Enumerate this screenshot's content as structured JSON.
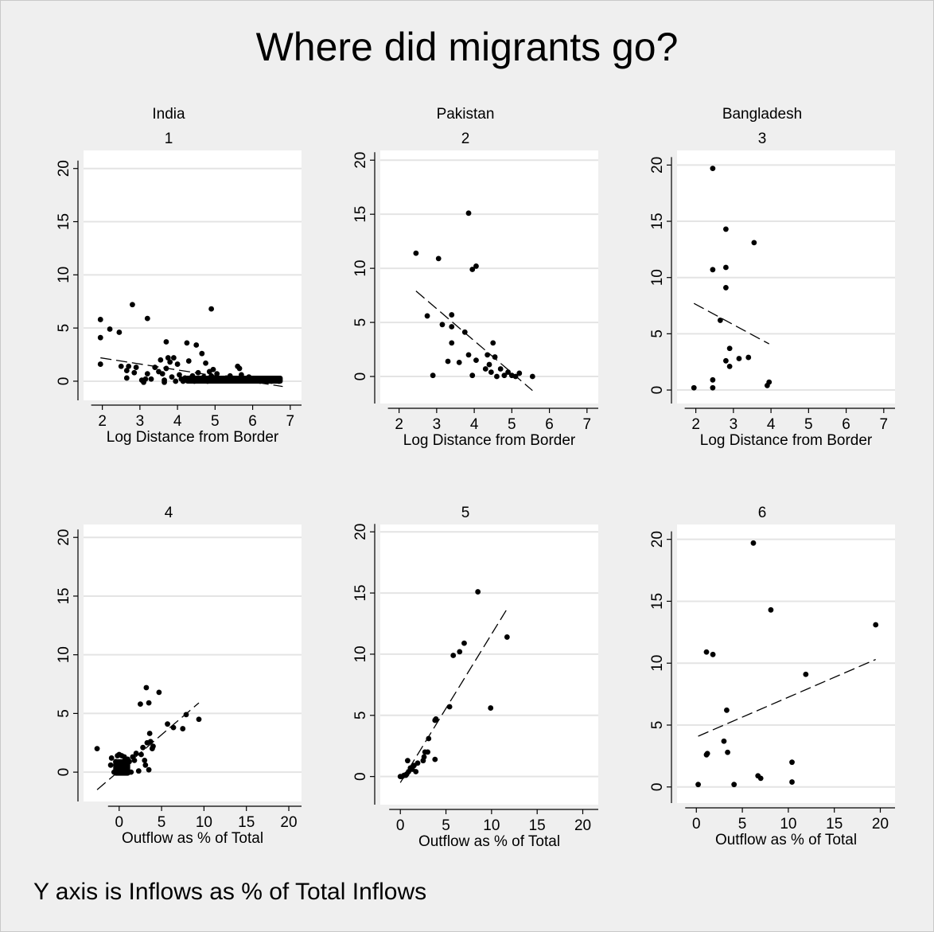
{
  "title": "Where did migrants go?",
  "footnote": "Y axis is Inflows as % of Total Inflows",
  "chart_data": [
    {
      "id": 1,
      "type": "scatter",
      "country": "India",
      "panel_label": "1",
      "xlabel": "Log Distance from Border",
      "ylabel": "",
      "xlim": [
        1.5,
        7.3
      ],
      "xticks": [
        2,
        3,
        4,
        5,
        6,
        7
      ],
      "ylim": [
        -1.8,
        21.7
      ],
      "yticks": [
        0,
        5,
        10,
        15,
        20
      ],
      "points": [
        [
          1.95,
          5.8
        ],
        [
          1.95,
          4.1
        ],
        [
          1.95,
          1.6
        ],
        [
          2.2,
          4.9
        ],
        [
          2.45,
          4.6
        ],
        [
          2.5,
          1.4
        ],
        [
          2.65,
          1.0
        ],
        [
          2.65,
          0.3
        ],
        [
          2.7,
          1.4
        ],
        [
          2.8,
          7.2
        ],
        [
          2.85,
          0.8
        ],
        [
          2.9,
          1.3
        ],
        [
          3.05,
          0.1
        ],
        [
          3.1,
          -0.1
        ],
        [
          3.15,
          0.2
        ],
        [
          3.2,
          5.9
        ],
        [
          3.2,
          0.7
        ],
        [
          3.3,
          0.2
        ],
        [
          3.4,
          1.3
        ],
        [
          3.5,
          0.9
        ],
        [
          3.55,
          2.0
        ],
        [
          3.6,
          0.7
        ],
        [
          3.65,
          0.1
        ],
        [
          3.65,
          -0.1
        ],
        [
          3.7,
          3.7
        ],
        [
          3.7,
          1.2
        ],
        [
          3.75,
          2.2
        ],
        [
          3.8,
          1.8
        ],
        [
          3.85,
          0.4
        ],
        [
          3.9,
          2.2
        ],
        [
          3.95,
          0.0
        ],
        [
          4.0,
          1.6
        ],
        [
          4.05,
          0.6
        ],
        [
          4.1,
          0.2
        ],
        [
          4.15,
          0.0
        ],
        [
          4.2,
          0.3
        ],
        [
          4.25,
          3.6
        ],
        [
          4.3,
          1.9
        ],
        [
          4.35,
          0.3
        ],
        [
          4.4,
          0.5
        ],
        [
          4.45,
          0.0
        ],
        [
          4.5,
          3.4
        ],
        [
          4.55,
          0.8
        ],
        [
          4.6,
          0.2
        ],
        [
          4.65,
          2.6
        ],
        [
          4.7,
          0.4
        ],
        [
          4.75,
          1.7
        ],
        [
          4.8,
          0.0
        ],
        [
          4.85,
          0.9
        ],
        [
          4.9,
          6.8
        ],
        [
          4.9,
          0.5
        ],
        [
          4.95,
          1.1
        ],
        [
          5.0,
          0.3
        ],
        [
          5.05,
          0.7
        ],
        [
          5.1,
          0.1
        ],
        [
          5.2,
          0.2
        ],
        [
          5.3,
          0.3
        ],
        [
          5.4,
          0.5
        ],
        [
          5.5,
          0.1
        ],
        [
          5.6,
          1.4
        ],
        [
          5.65,
          1.2
        ],
        [
          5.7,
          0.6
        ],
        [
          5.8,
          0.2
        ],
        [
          5.9,
          0.4
        ],
        [
          6.0,
          0.1
        ],
        [
          6.1,
          0.2
        ],
        [
          6.2,
          0.0
        ],
        [
          6.3,
          0.1
        ],
        [
          6.5,
          0.0
        ],
        [
          6.7,
          0.0
        ]
      ],
      "jitter_band": [
        4.2,
        6.8,
        0.0,
        0.3
      ],
      "fit_line": [
        [
          1.95,
          2.2
        ],
        [
          6.8,
          -0.5
        ]
      ]
    },
    {
      "id": 2,
      "type": "scatter",
      "country": "Pakistan",
      "panel_label": "2",
      "xlabel": "Log Distance from Border",
      "ylabel": "",
      "xlim": [
        1.5,
        7.3
      ],
      "xticks": [
        2,
        3,
        4,
        5,
        6,
        7
      ],
      "ylim": [
        -2.5,
        20.9
      ],
      "yticks": [
        0,
        5,
        10,
        15,
        20
      ],
      "points": [
        [
          2.45,
          11.4
        ],
        [
          2.75,
          5.6
        ],
        [
          2.9,
          0.1
        ],
        [
          3.05,
          10.9
        ],
        [
          3.15,
          4.8
        ],
        [
          3.3,
          1.4
        ],
        [
          3.4,
          4.6
        ],
        [
          3.4,
          5.7
        ],
        [
          3.4,
          3.1
        ],
        [
          3.6,
          1.3
        ],
        [
          3.75,
          4.1
        ],
        [
          3.85,
          15.1
        ],
        [
          3.85,
          2.0
        ],
        [
          3.95,
          9.9
        ],
        [
          3.95,
          0.1
        ],
        [
          4.05,
          10.2
        ],
        [
          4.05,
          1.5
        ],
        [
          4.3,
          0.7
        ],
        [
          4.35,
          2.0
        ],
        [
          4.4,
          1.1
        ],
        [
          4.45,
          0.4
        ],
        [
          4.5,
          3.1
        ],
        [
          4.55,
          1.8
        ],
        [
          4.6,
          0.0
        ],
        [
          4.7,
          0.7
        ],
        [
          4.8,
          0.1
        ],
        [
          4.9,
          0.4
        ],
        [
          5.0,
          0.1
        ],
        [
          5.1,
          0.0
        ],
        [
          5.2,
          0.3
        ],
        [
          5.55,
          0.0
        ]
      ],
      "jitter_band": null,
      "fit_line": [
        [
          2.45,
          7.9
        ],
        [
          5.55,
          -1.3
        ]
      ]
    },
    {
      "id": 3,
      "type": "scatter",
      "country": "Bangladesh",
      "panel_label": "3",
      "xlabel": "Log Distance from Border",
      "ylabel": "",
      "xlim": [
        1.5,
        7.3
      ],
      "xticks": [
        2,
        3,
        4,
        5,
        6,
        7
      ],
      "ylim": [
        -1.2,
        21.3
      ],
      "yticks": [
        0,
        5,
        10,
        15,
        20
      ],
      "points": [
        [
          1.95,
          0.2
        ],
        [
          2.45,
          19.7
        ],
        [
          2.45,
          10.7
        ],
        [
          2.45,
          0.9
        ],
        [
          2.45,
          0.2
        ],
        [
          2.65,
          6.2
        ],
        [
          2.8,
          14.3
        ],
        [
          2.8,
          10.9
        ],
        [
          2.8,
          9.1
        ],
        [
          2.8,
          2.6
        ],
        [
          2.9,
          3.7
        ],
        [
          2.9,
          2.1
        ],
        [
          3.15,
          2.8
        ],
        [
          3.4,
          2.9
        ],
        [
          3.55,
          13.1
        ],
        [
          3.9,
          0.4
        ],
        [
          3.95,
          0.7
        ]
      ],
      "jitter_band": null,
      "fit_line": [
        [
          1.95,
          7.7
        ],
        [
          3.95,
          4.1
        ]
      ]
    },
    {
      "id": 4,
      "type": "scatter",
      "country": "",
      "panel_label": "4",
      "xlabel": "Outflow as % of Total",
      "ylabel": "",
      "xlim": [
        -4.2,
        21.5
      ],
      "xticks": [
        0,
        5,
        10,
        15,
        20
      ],
      "ylim": [
        -2.5,
        21.1
      ],
      "yticks": [
        0,
        5,
        10,
        15,
        20
      ],
      "points": [
        [
          -2.6,
          2.0
        ],
        [
          -0.9,
          1.2
        ],
        [
          -1.0,
          0.6
        ],
        [
          -0.6,
          0.0
        ],
        [
          -0.4,
          0.9
        ],
        [
          -0.2,
          1.4
        ],
        [
          -0.1,
          0.6
        ],
        [
          0.0,
          1.5
        ],
        [
          0.1,
          0.2
        ],
        [
          0.3,
          1.4
        ],
        [
          0.4,
          0.8
        ],
        [
          0.5,
          0.0
        ],
        [
          0.6,
          1.3
        ],
        [
          0.8,
          0.5
        ],
        [
          1.0,
          1.1
        ],
        [
          1.2,
          0.9
        ],
        [
          1.4,
          0.0
        ],
        [
          1.6,
          1.3
        ],
        [
          1.8,
          1.0
        ],
        [
          2.0,
          1.6
        ],
        [
          2.3,
          0.1
        ],
        [
          2.5,
          5.8
        ],
        [
          2.6,
          1.5
        ],
        [
          2.8,
          2.1
        ],
        [
          3.0,
          1.0
        ],
        [
          3.1,
          0.6
        ],
        [
          3.2,
          7.2
        ],
        [
          3.3,
          2.5
        ],
        [
          3.5,
          0.2
        ],
        [
          3.5,
          5.9
        ],
        [
          3.6,
          3.3
        ],
        [
          3.7,
          2.6
        ],
        [
          3.9,
          2.0
        ],
        [
          4.0,
          2.2
        ],
        [
          4.7,
          6.8
        ],
        [
          5.7,
          4.1
        ],
        [
          6.4,
          3.8
        ],
        [
          7.5,
          3.7
        ],
        [
          7.9,
          4.9
        ],
        [
          9.4,
          4.5
        ]
      ],
      "jitter_band": [
        -0.7,
        1.3,
        -0.1,
        0.9
      ],
      "fit_line": [
        [
          -2.6,
          -1.5
        ],
        [
          9.4,
          5.9
        ]
      ]
    },
    {
      "id": 5,
      "type": "scatter",
      "country": "",
      "panel_label": "5",
      "xlabel": "Outflow as % of Total",
      "ylabel": "",
      "xlim": [
        -2.2,
        21.7
      ],
      "xticks": [
        0,
        5,
        10,
        15,
        20
      ],
      "ylim": [
        -2.3,
        20.6
      ],
      "yticks": [
        0,
        5,
        10,
        15,
        20
      ],
      "points": [
        [
          0.0,
          0.0
        ],
        [
          0.2,
          0.0
        ],
        [
          0.4,
          0.1
        ],
        [
          0.6,
          0.1
        ],
        [
          0.7,
          0.2
        ],
        [
          0.8,
          1.3
        ],
        [
          0.9,
          0.4
        ],
        [
          1.1,
          0.7
        ],
        [
          1.3,
          0.6
        ],
        [
          1.5,
          0.9
        ],
        [
          1.7,
          0.4
        ],
        [
          1.9,
          1.1
        ],
        [
          2.5,
          1.3
        ],
        [
          2.6,
          1.6
        ],
        [
          2.7,
          2.0
        ],
        [
          3.0,
          2.0
        ],
        [
          3.1,
          3.1
        ],
        [
          3.8,
          4.6
        ],
        [
          3.8,
          1.4
        ],
        [
          3.9,
          4.7
        ],
        [
          5.4,
          5.7
        ],
        [
          5.8,
          9.9
        ],
        [
          6.5,
          10.2
        ],
        [
          7.0,
          10.9
        ],
        [
          8.5,
          15.1
        ],
        [
          9.9,
          5.6
        ],
        [
          11.7,
          11.4
        ]
      ],
      "jitter_band": null,
      "fit_line": [
        [
          0.0,
          -0.5
        ],
        [
          11.7,
          13.7
        ]
      ]
    },
    {
      "id": 6,
      "type": "scatter",
      "country": "",
      "panel_label": "6",
      "xlabel": "Outflow as % of Total",
      "ylabel": "",
      "xlim": [
        -2.1,
        21.6
      ],
      "xticks": [
        0,
        5,
        10,
        15,
        20
      ],
      "ylim": [
        -1.3,
        21.2
      ],
      "yticks": [
        0,
        5,
        10,
        15,
        20
      ],
      "points": [
        [
          0.2,
          0.2
        ],
        [
          1.1,
          10.9
        ],
        [
          1.1,
          2.6
        ],
        [
          1.2,
          2.7
        ],
        [
          1.8,
          10.7
        ],
        [
          3.0,
          3.7
        ],
        [
          3.3,
          6.2
        ],
        [
          3.4,
          2.8
        ],
        [
          4.1,
          0.2
        ],
        [
          6.2,
          19.7
        ],
        [
          6.7,
          0.9
        ],
        [
          7.0,
          0.7
        ],
        [
          8.1,
          14.3
        ],
        [
          10.4,
          2.0
        ],
        [
          10.4,
          0.4
        ],
        [
          11.9,
          9.1
        ],
        [
          19.5,
          13.1
        ]
      ],
      "jitter_band": null,
      "fit_line": [
        [
          0.2,
          4.1
        ],
        [
          19.5,
          10.3
        ]
      ]
    }
  ]
}
